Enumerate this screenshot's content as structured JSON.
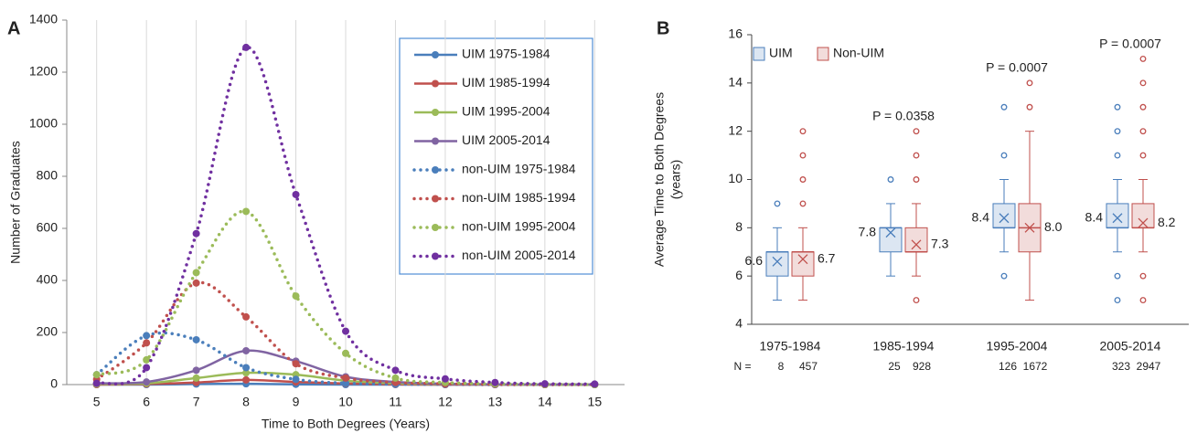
{
  "chart_data": [
    {
      "type": "line",
      "panel_label": "A",
      "x_label": "Time to Both Degrees (Years)",
      "y_label": "Number of Graduates",
      "x": [
        5,
        6,
        7,
        8,
        9,
        10,
        11,
        12,
        13,
        14,
        15
      ],
      "xlim": [
        4.4,
        15.6
      ],
      "xticks": [
        5,
        6,
        7,
        8,
        9,
        10,
        11,
        12,
        13,
        14,
        15
      ],
      "ylim": [
        0,
        1400
      ],
      "yticks": [
        0,
        200,
        400,
        600,
        800,
        1000,
        1200,
        1400
      ],
      "grid": "x",
      "legend": "upper right",
      "series": [
        {
          "name": "UIM 1975-1984",
          "color": "#4a7ebb",
          "style": "solid",
          "values": [
            0,
            0,
            2,
            3,
            1,
            0,
            0,
            0,
            0,
            0,
            0
          ]
        },
        {
          "name": "UIM 1985-1994",
          "color": "#c0504d",
          "style": "solid",
          "values": [
            0,
            2,
            8,
            18,
            10,
            4,
            1,
            0,
            0,
            0,
            0
          ]
        },
        {
          "name": "UIM 1995-2004",
          "color": "#9bbb59",
          "style": "solid",
          "values": [
            2,
            5,
            25,
            45,
            38,
            15,
            5,
            2,
            1,
            0,
            0
          ]
        },
        {
          "name": "UIM 2005-2014",
          "color": "#8064a2",
          "style": "solid",
          "values": [
            5,
            10,
            55,
            130,
            90,
            30,
            10,
            3,
            1,
            0,
            0
          ]
        },
        {
          "name": "non-UIM 1975-1984",
          "color": "#4a7ebb",
          "style": "dotted",
          "values": [
            38,
            188,
            172,
            65,
            20,
            5,
            2,
            1,
            0,
            0,
            0
          ]
        },
        {
          "name": "non-UIM 1985-1994",
          "color": "#c0504d",
          "style": "dotted",
          "values": [
            20,
            160,
            390,
            260,
            80,
            25,
            8,
            3,
            1,
            0,
            0
          ]
        },
        {
          "name": "non-UIM 1995-2004",
          "color": "#9bbb59",
          "style": "dotted",
          "values": [
            38,
            95,
            430,
            665,
            340,
            120,
            25,
            8,
            3,
            1,
            0
          ]
        },
        {
          "name": "non-UIM 2005-2014",
          "color": "#7030a0",
          "style": "dotted",
          "values": [
            5,
            65,
            580,
            1295,
            730,
            205,
            55,
            22,
            8,
            3,
            2
          ]
        }
      ]
    },
    {
      "type": "box",
      "panel_label": "B",
      "y_label": [
        "Average Time to Both Degrees",
        "(years)"
      ],
      "categories": [
        "1975-1984",
        "1985-1994",
        "1995-2004",
        "2005-2014"
      ],
      "ylim": [
        4,
        16
      ],
      "yticks": [
        4,
        6,
        8,
        10,
        12,
        14,
        16
      ],
      "legend": "upper left",
      "n_label": "N =",
      "annotations": [
        null,
        "P = 0.0358",
        "P = 0.0007",
        "P = 0.0007"
      ],
      "series": [
        {
          "name": "UIM",
          "color": "#4a7ebb",
          "fill": "#dce6f2",
          "values": [
            6.6,
            7.8,
            8.4,
            8.4
          ],
          "n": [
            8,
            25,
            126,
            323
          ],
          "boxes": [
            {
              "min": 5,
              "q1": 6,
              "median": 7,
              "q3": 7,
              "max": 8,
              "outliers": [
                9
              ]
            },
            {
              "min": 6,
              "q1": 7,
              "median": 8,
              "q3": 8,
              "max": 9,
              "outliers": [
                10
              ]
            },
            {
              "min": 7,
              "q1": 8,
              "median": 8,
              "q3": 9,
              "max": 10,
              "outliers": [
                6,
                11,
                13
              ]
            },
            {
              "min": 7,
              "q1": 8,
              "median": 8,
              "q3": 9,
              "max": 10,
              "outliers": [
                5,
                6,
                11,
                12,
                13
              ]
            }
          ]
        },
        {
          "name": "Non-UIM",
          "color": "#c0504d",
          "fill": "#f2dcdb",
          "values": [
            6.7,
            7.3,
            8.0,
            8.2
          ],
          "value_labels": [
            "6.7",
            "7.3",
            "8.0",
            "8.2"
          ],
          "n": [
            457,
            928,
            1672,
            2947
          ],
          "boxes": [
            {
              "min": 5,
              "q1": 6,
              "median": 7,
              "q3": 7,
              "max": 8,
              "outliers": [
                9,
                10,
                11,
                12
              ]
            },
            {
              "min": 6,
              "q1": 7,
              "median": 7,
              "q3": 8,
              "max": 9,
              "outliers": [
                5,
                10,
                11,
                12
              ]
            },
            {
              "min": 5,
              "q1": 7,
              "median": 8,
              "q3": 9,
              "max": 12,
              "outliers": [
                13,
                14
              ]
            },
            {
              "min": 7,
              "q1": 8,
              "median": 8,
              "q3": 9,
              "max": 10,
              "outliers": [
                5,
                6,
                11,
                12,
                13,
                14,
                15
              ]
            }
          ]
        }
      ]
    }
  ]
}
